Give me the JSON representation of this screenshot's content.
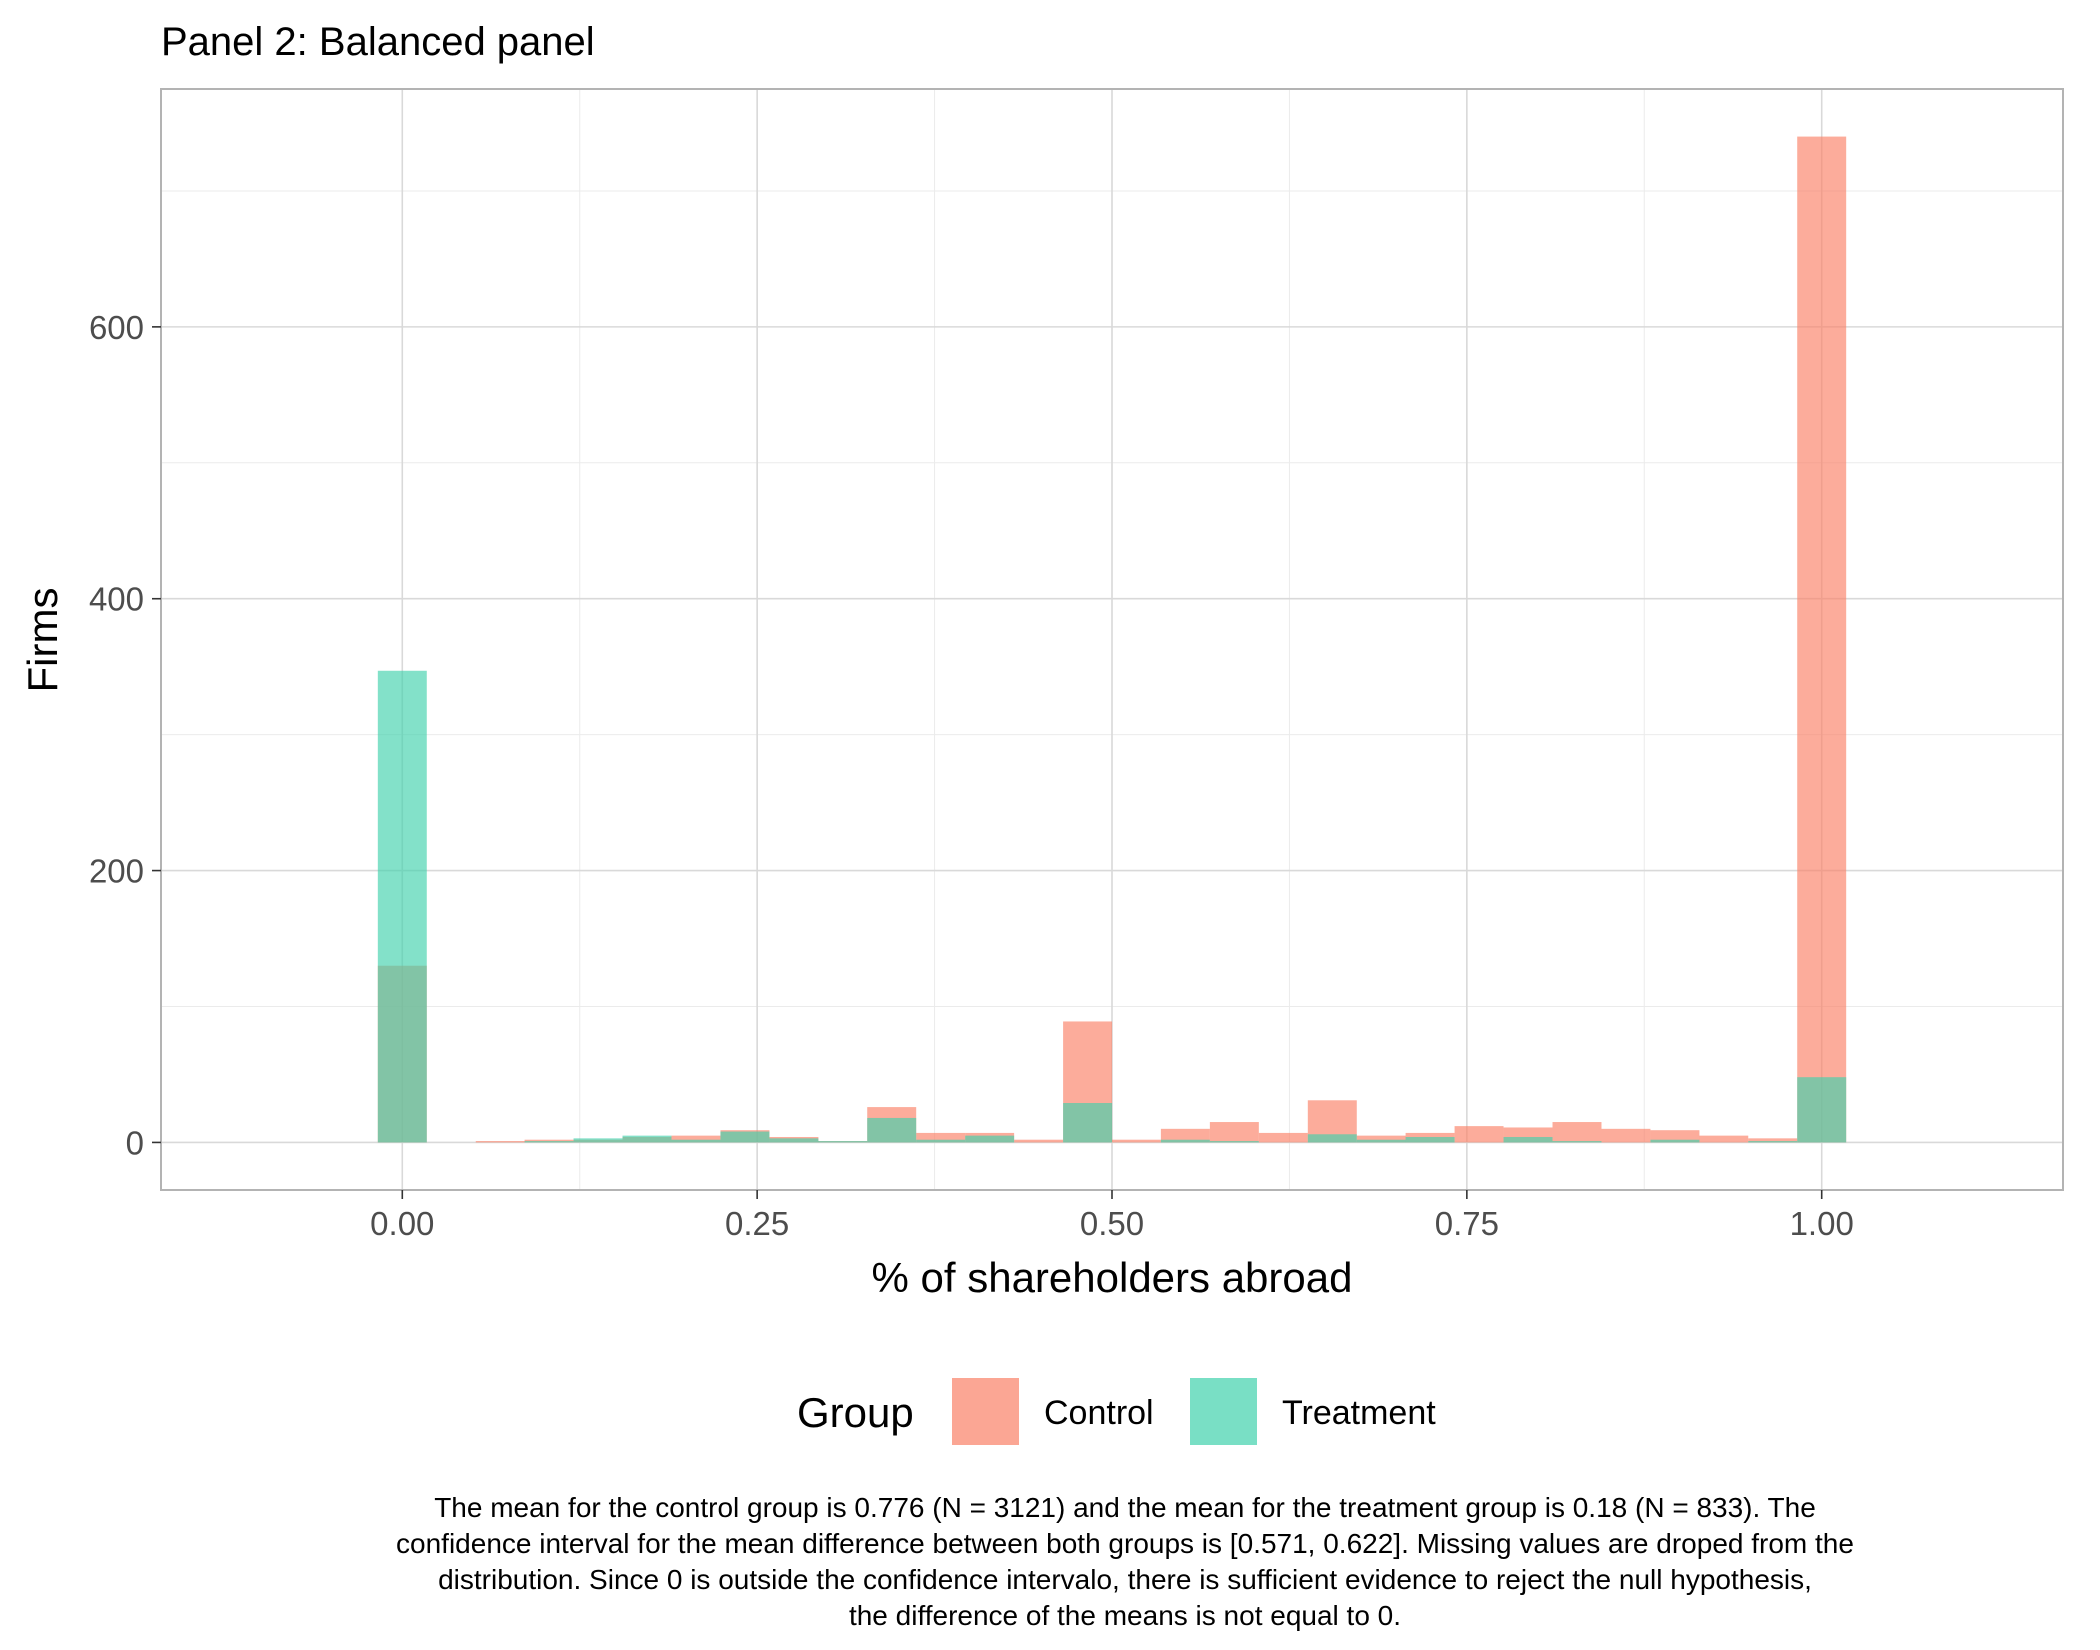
{
  "chart_data": {
    "type": "bar",
    "title": "Panel 2: Balanced panel",
    "xlabel": "% of shareholders abroad",
    "ylabel": "Firms",
    "xlim": [
      -0.17,
      1.17
    ],
    "ylim": [
      -35,
      775
    ],
    "x_ticks": [
      0,
      0.25,
      0.5,
      0.75,
      1
    ],
    "x_tick_labels": [
      "0.00",
      "0.25",
      "0.50",
      "0.75",
      "1.00"
    ],
    "y_ticks": [
      0,
      200,
      400,
      600
    ],
    "y_tick_labels": [
      "0",
      "200",
      "400",
      "600"
    ],
    "grid": true,
    "legend_position": "bottom",
    "legend": {
      "title": "Group",
      "entries": [
        {
          "label": "Control",
          "color": "#fa8066"
        },
        {
          "label": "Treatment",
          "color": "#40d1ac"
        }
      ]
    },
    "bin_width": 0.0345,
    "bin_centers": [
      0,
      0.0345,
      0.069,
      0.1034,
      0.1379,
      0.1724,
      0.2069,
      0.2414,
      0.2759,
      0.3103,
      0.3448,
      0.3793,
      0.4138,
      0.4483,
      0.4828,
      0.5172,
      0.5517,
      0.5862,
      0.6207,
      0.6552,
      0.6897,
      0.7241,
      0.7586,
      0.7931,
      0.8276,
      0.8621,
      0.8966,
      0.931,
      0.9655,
      1
    ],
    "series": [
      {
        "name": "Control",
        "color": "#fa8066",
        "values": [
          130,
          0,
          1,
          2,
          2,
          4,
          5,
          9,
          4,
          1,
          26,
          7,
          7,
          2,
          89,
          2,
          10,
          15,
          7,
          31,
          5,
          7,
          12,
          11,
          15,
          10,
          9,
          5,
          3,
          740
        ]
      },
      {
        "name": "Treatment",
        "color": "#40d1ac",
        "values": [
          347,
          0,
          0,
          1,
          3,
          5,
          2,
          8,
          3,
          1,
          18,
          2,
          5,
          0,
          29,
          0,
          2,
          1,
          0,
          6,
          2,
          4,
          0,
          4,
          1,
          0,
          2,
          0,
          1,
          48
        ]
      }
    ]
  },
  "caption": {
    "lines": [
      "The mean for the control group is 0.776 (N = 3121) and the mean for the treatment group is 0.18 (N = 833). The",
      "confidence interval for the mean difference between both groups is [0.571, 0.622]. Missing values are droped from the",
      "distribution. Since 0 is outside the confidence intervalo, there is sufficient evidence to reject the null hypothesis,",
      "the difference of the means is not equal to 0."
    ]
  }
}
